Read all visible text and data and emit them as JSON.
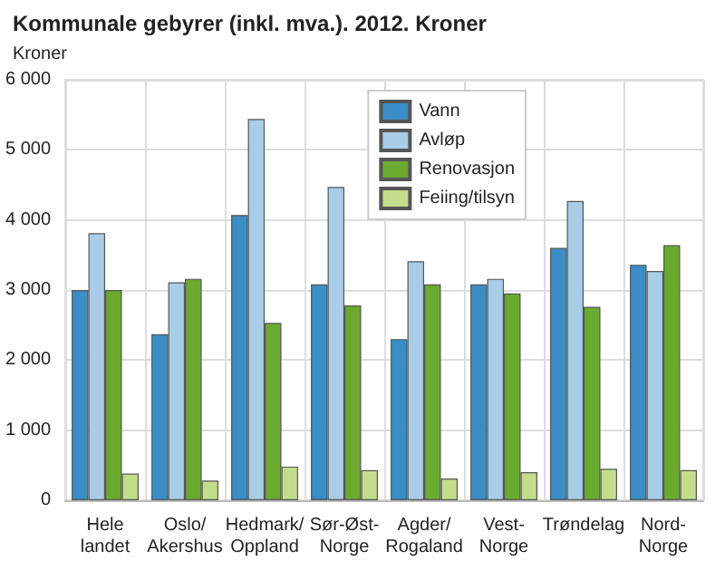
{
  "chart_data": {
    "type": "bar",
    "title": "Kommunale gebyrer (inkl. mva.). 2012. Kroner",
    "ylabel": "Kroner",
    "categories": [
      "Hele\nlandet",
      "Oslo/\nAkershus",
      "Hedmark/\nOppland",
      "Sør-Øst-\nNorge",
      "Agder/\nRogaland",
      "Vest-\nNorge",
      "Trøndelag",
      "Nord-\nNorge"
    ],
    "series": [
      {
        "name": "Vann",
        "color": "#3a8dc5",
        "values": [
          3000,
          2370,
          4070,
          3080,
          2300,
          3080,
          3600,
          3360
        ]
      },
      {
        "name": "Avløp",
        "color": "#a8cde6",
        "values": [
          3810,
          3110,
          5440,
          4470,
          3410,
          3160,
          4270,
          3270
        ]
      },
      {
        "name": "Renovasjon",
        "color": "#6aaa2e",
        "values": [
          3000,
          3160,
          2530,
          2780,
          3080,
          2950,
          2760,
          3640
        ]
      },
      {
        "name": "Feiing/tilsyn",
        "color": "#c4dd8a",
        "values": [
          380,
          280,
          480,
          430,
          310,
          400,
          450,
          430
        ]
      }
    ],
    "ylim": [
      0,
      6000
    ],
    "yticks": [
      {
        "value": 0,
        "label": "0"
      },
      {
        "value": 1000,
        "label": "1 000"
      },
      {
        "value": 2000,
        "label": "2 000"
      },
      {
        "value": 3000,
        "label": "3 000"
      },
      {
        "value": 4000,
        "label": "4 000"
      },
      {
        "value": 5000,
        "label": "5 000"
      },
      {
        "value": 6000,
        "label": "6 000"
      }
    ],
    "grid": true,
    "legend": "top right"
  }
}
